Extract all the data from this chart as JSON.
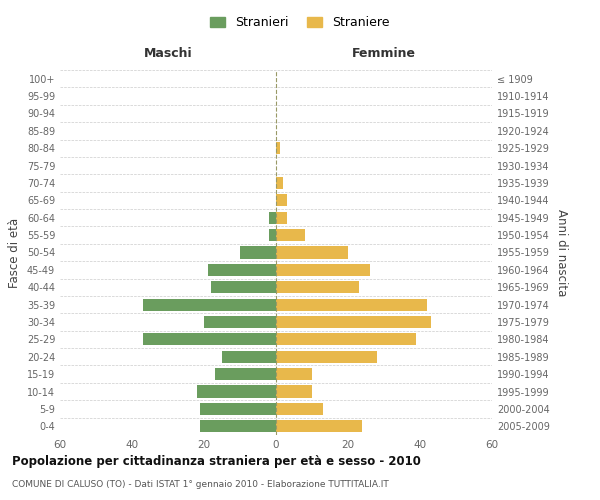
{
  "age_groups": [
    "0-4",
    "5-9",
    "10-14",
    "15-19",
    "20-24",
    "25-29",
    "30-34",
    "35-39",
    "40-44",
    "45-49",
    "50-54",
    "55-59",
    "60-64",
    "65-69",
    "70-74",
    "75-79",
    "80-84",
    "85-89",
    "90-94",
    "95-99",
    "100+"
  ],
  "birth_years": [
    "2005-2009",
    "2000-2004",
    "1995-1999",
    "1990-1994",
    "1985-1989",
    "1980-1984",
    "1975-1979",
    "1970-1974",
    "1965-1969",
    "1960-1964",
    "1955-1959",
    "1950-1954",
    "1945-1949",
    "1940-1944",
    "1935-1939",
    "1930-1934",
    "1925-1929",
    "1920-1924",
    "1915-1919",
    "1910-1914",
    "≤ 1909"
  ],
  "maschi": [
    21,
    21,
    22,
    17,
    15,
    37,
    20,
    37,
    18,
    19,
    10,
    2,
    2,
    0,
    0,
    0,
    0,
    0,
    0,
    0,
    0
  ],
  "femmine": [
    24,
    13,
    10,
    10,
    28,
    39,
    43,
    42,
    23,
    26,
    20,
    8,
    3,
    3,
    2,
    0,
    1,
    0,
    0,
    0,
    0
  ],
  "maschi_color": "#6a9d5e",
  "femmine_color": "#e8b84b",
  "title": "Popolazione per cittadinanza straniera per età e sesso - 2010",
  "subtitle": "COMUNE DI CALUSO (TO) - Dati ISTAT 1° gennaio 2010 - Elaborazione TUTTITALIA.IT",
  "xlabel_left": "Maschi",
  "xlabel_right": "Femmine",
  "ylabel_left": "Fasce di età",
  "ylabel_right": "Anni di nascita",
  "legend_maschi": "Stranieri",
  "legend_femmine": "Straniere",
  "xlim": 60,
  "background_color": "#ffffff",
  "grid_color": "#cccccc",
  "bar_height": 0.7,
  "dashed_line_color": "#999966"
}
